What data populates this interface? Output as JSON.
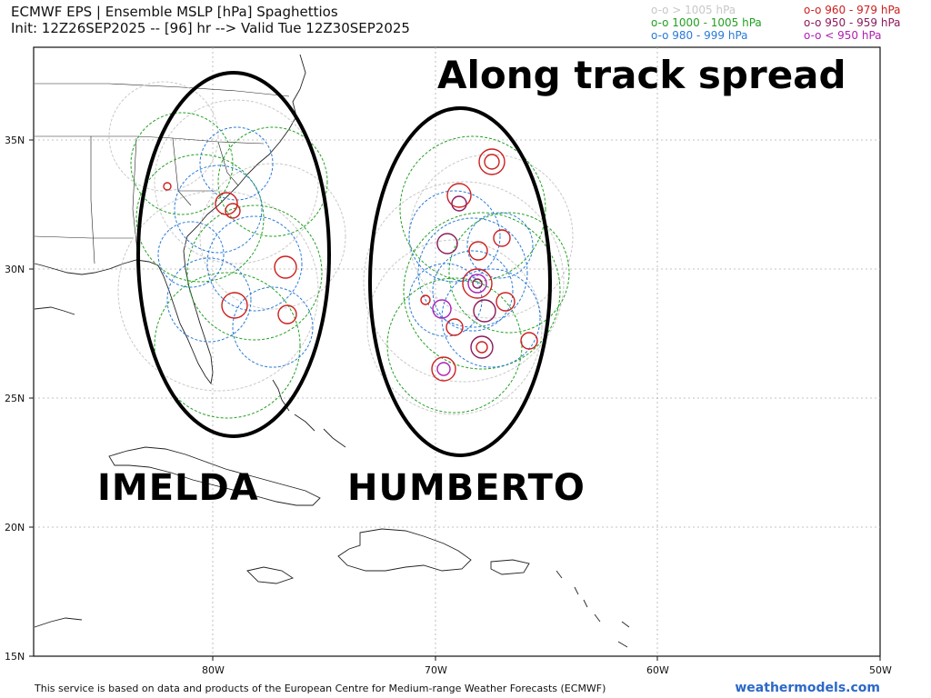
{
  "header": {
    "title": "ECMWF EPS | Ensemble MSLP [hPa] Spaghettios",
    "subtitle": "Init: 12Z26SEP2025 -- [96] hr --> Valid Tue 12Z30SEP2025"
  },
  "legend": {
    "items": [
      {
        "label": "o-o > 1005 hPa",
        "color": "#c8c8c8"
      },
      {
        "label": "o-o 1000 - 1005 hPa",
        "color": "#22a022"
      },
      {
        "label": "o-o 980 - 999 hPa",
        "color": "#2a7ad8"
      },
      {
        "label": "o-o 960 - 979 hPa",
        "color": "#cc1f1f"
      },
      {
        "label": "o-o 950 - 959 hPa",
        "color": "#8b1a5a"
      },
      {
        "label": "o-o < 950 hPa",
        "color": "#b020b0"
      }
    ]
  },
  "map": {
    "lat_labels": [
      "35N",
      "30N",
      "25N",
      "20N",
      "15N"
    ],
    "lon_labels": [
      "80W",
      "70W",
      "60W",
      "50W"
    ],
    "extent": {
      "lon": [
        -88,
        -50
      ],
      "lat": [
        15,
        38.5
      ]
    },
    "grid": true
  },
  "annotations": {
    "spread": "Along track spread",
    "storm_west": "IMELDA",
    "storm_east": "HUMBERTO"
  },
  "footer": {
    "credit": "This service is based on data and products of the European Centre for Medium-range Weather Forecasts (ECMWF)",
    "brand": "weathermodels.com"
  },
  "colors": {
    "gray": "#c8c8c8",
    "green": "#22a022",
    "blue": "#2a7ad8",
    "red": "#cc1f1f",
    "maroon": "#8b1a5a",
    "purple": "#b020b0",
    "grid": "#aaaaaa",
    "coast": "#222222"
  }
}
